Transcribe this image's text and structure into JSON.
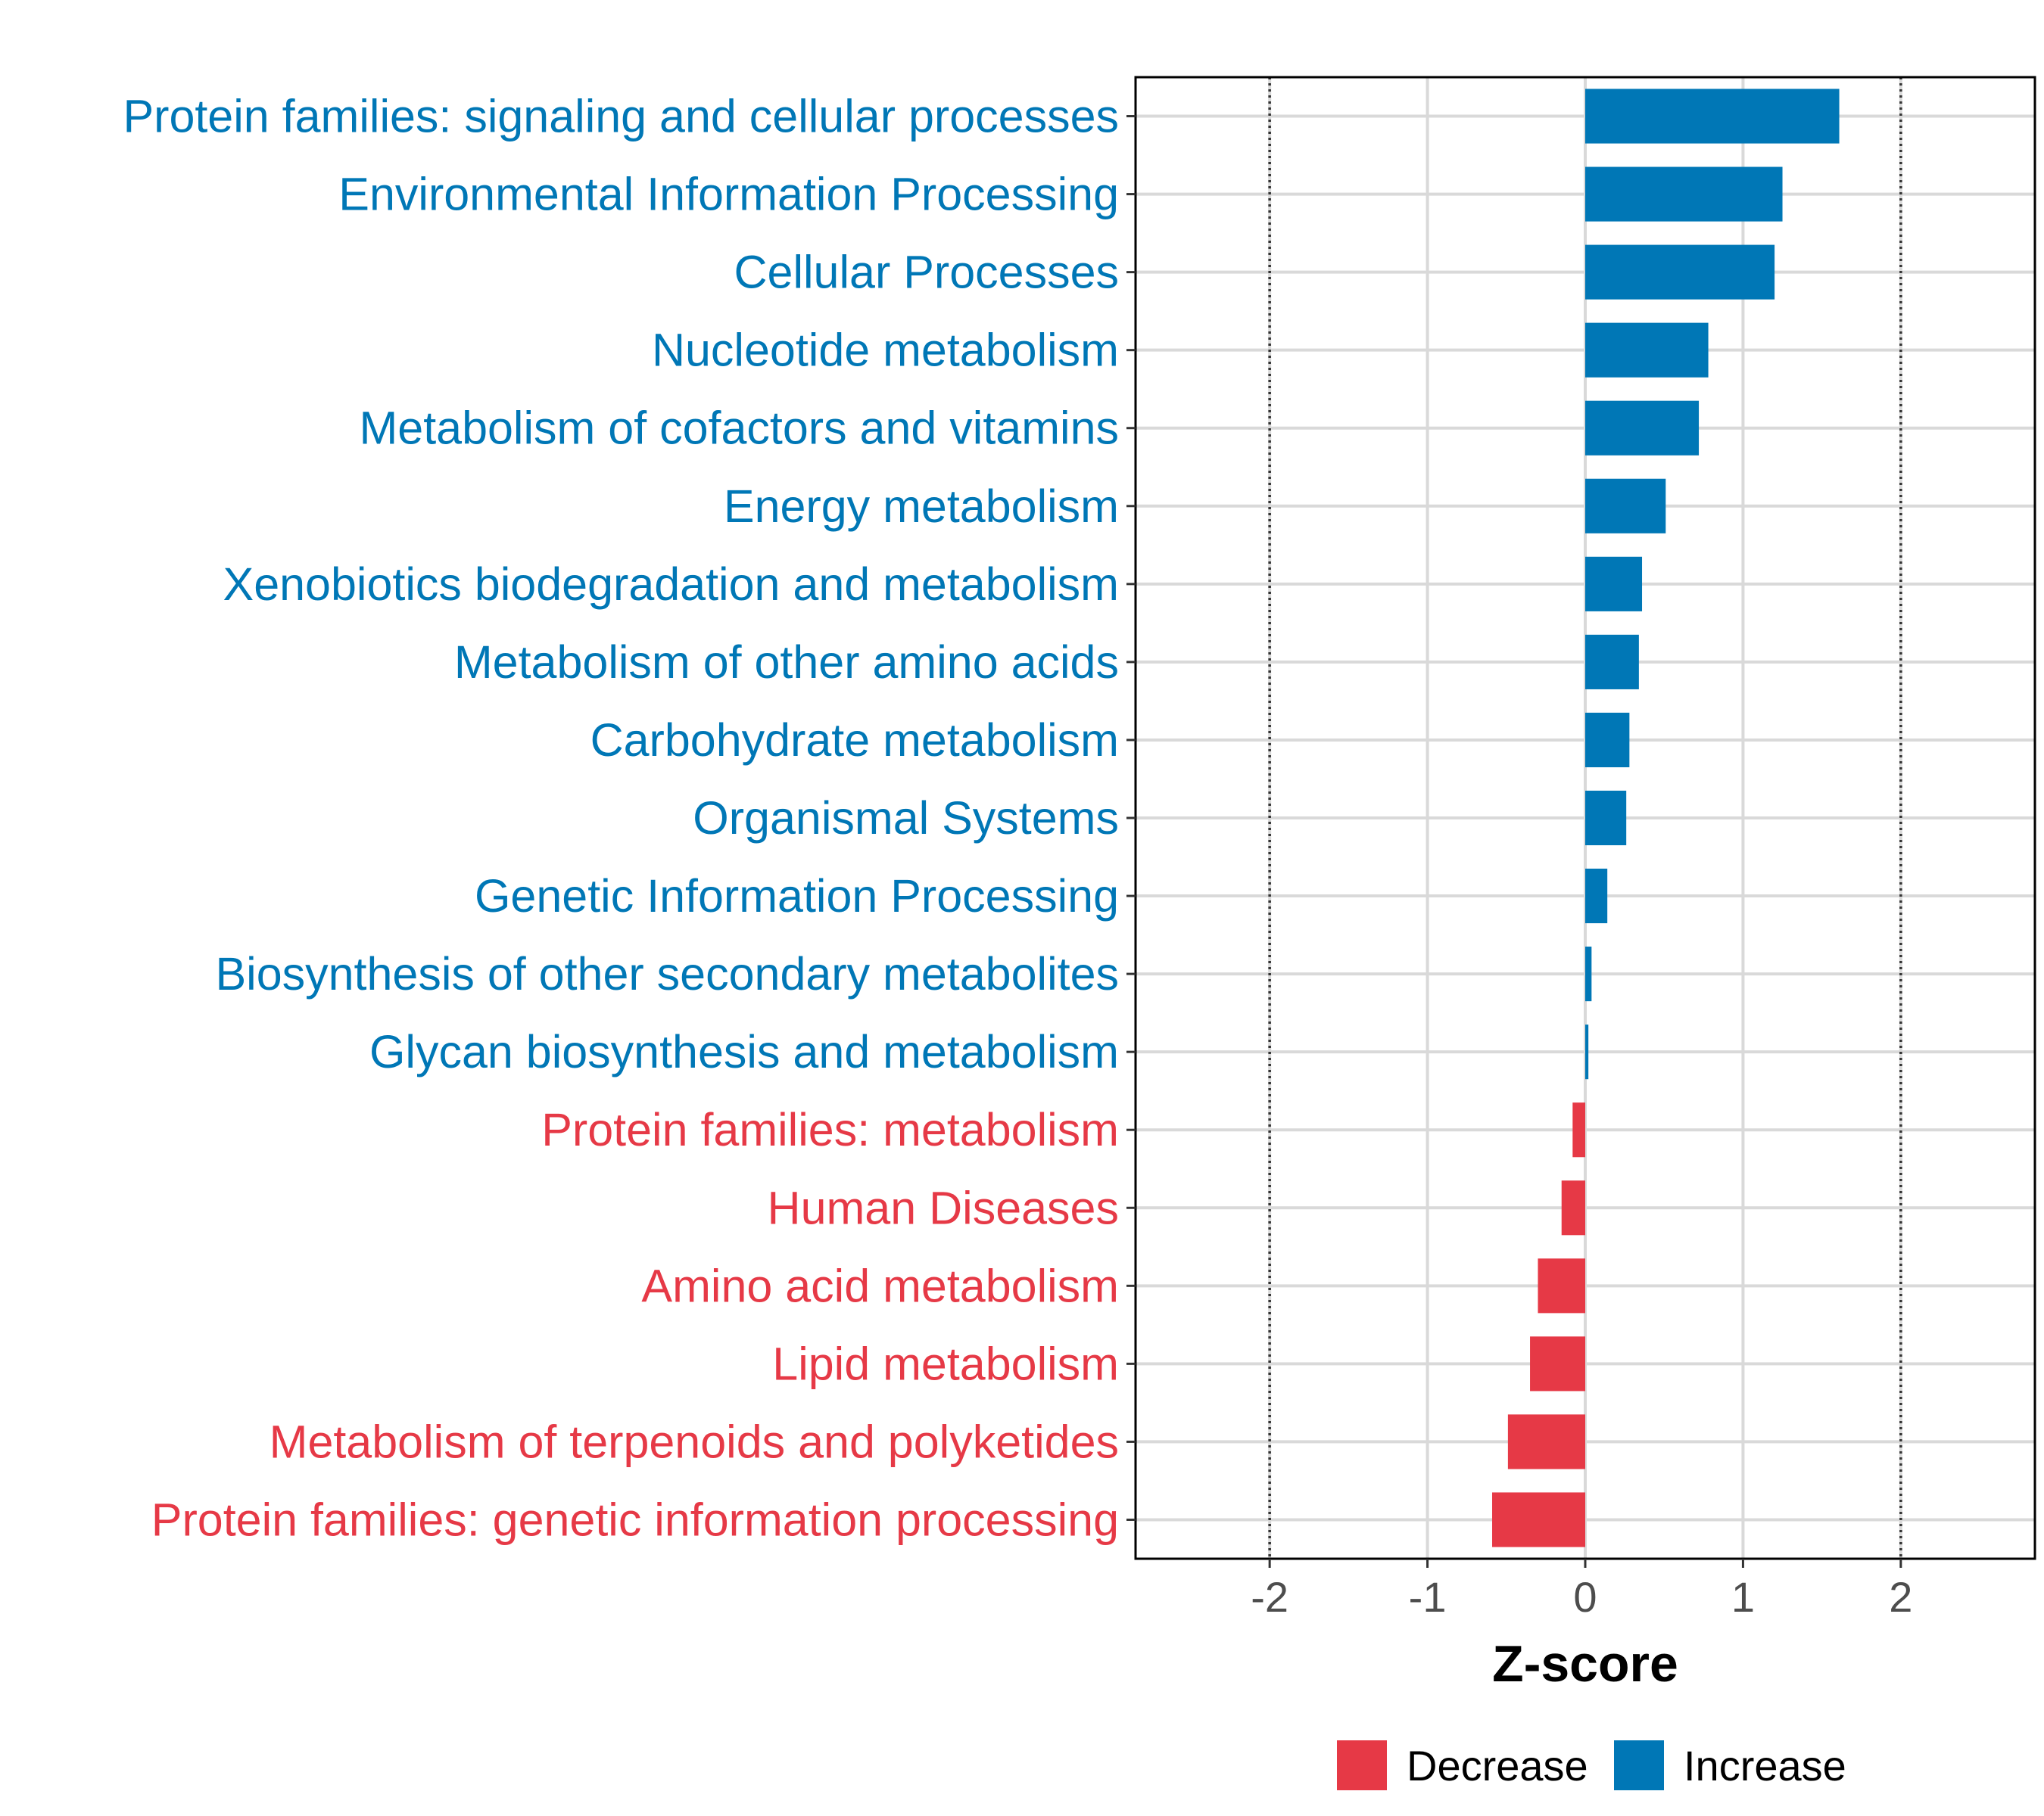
{
  "chart_data": {
    "type": "bar",
    "orientation": "horizontal",
    "title": "",
    "xlabel": "Z-score",
    "ylabel": "",
    "xlim": [
      -2.85,
      2.85
    ],
    "x_ticks": [
      -2,
      -1,
      0,
      1,
      2
    ],
    "x_tick_labels": [
      "-2",
      "-1",
      "0",
      "1",
      "2"
    ],
    "reference_lines": [
      -2,
      2
    ],
    "grid": true,
    "legend_position": "bottom",
    "categories": [
      "Protein families: signaling and cellular processes",
      "Environmental Information Processing",
      "Cellular Processes",
      "Nucleotide metabolism",
      "Metabolism of cofactors and vitamins",
      "Energy metabolism",
      "Xenobiotics biodegradation and metabolism",
      "Metabolism of other amino acids",
      "Carbohydrate metabolism",
      "Organismal Systems",
      "Genetic Information Processing",
      "Biosynthesis of other secondary metabolites",
      "Glycan biosynthesis and metabolism",
      "Protein families: metabolism",
      "Human Diseases",
      "Amino acid metabolism",
      "Lipid metabolism",
      "Metabolism of terpenoids and polyketides",
      "Protein families: genetic information processing"
    ],
    "values": [
      1.61,
      1.25,
      1.2,
      0.78,
      0.72,
      0.51,
      0.36,
      0.34,
      0.28,
      0.26,
      0.14,
      0.04,
      0.02,
      -0.08,
      -0.15,
      -0.3,
      -0.35,
      -0.49,
      -0.59
    ],
    "groups": [
      "Increase",
      "Increase",
      "Increase",
      "Increase",
      "Increase",
      "Increase",
      "Increase",
      "Increase",
      "Increase",
      "Increase",
      "Increase",
      "Increase",
      "Increase",
      "Decrease",
      "Decrease",
      "Decrease",
      "Decrease",
      "Decrease",
      "Decrease"
    ],
    "legend": [
      {
        "name": "Decrease",
        "color": "#E63946"
      },
      {
        "name": "Increase",
        "color": "#0077B6"
      }
    ]
  }
}
